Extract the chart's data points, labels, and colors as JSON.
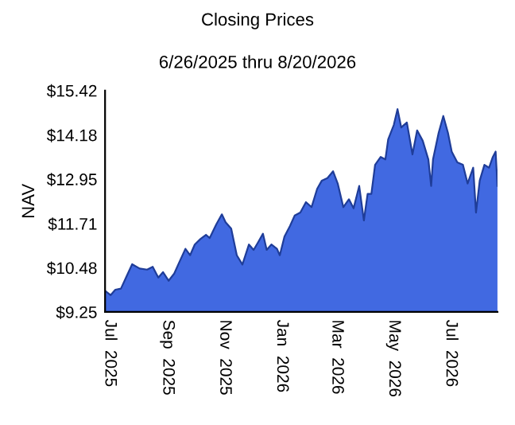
{
  "chart_data": {
    "type": "area",
    "title": "Closing Prices",
    "subtitle": "6/26/2025 thru 8/20/2026",
    "ylabel": "NAV",
    "x": [
      "2025-06-26",
      "2025-07-02",
      "2025-07-07",
      "2025-07-13",
      "2025-07-19",
      "2025-07-25",
      "2025-08-02",
      "2025-08-10",
      "2025-08-16",
      "2025-08-22",
      "2025-08-27",
      "2025-09-02",
      "2025-09-08",
      "2025-09-13",
      "2025-09-20",
      "2025-09-25",
      "2025-09-30",
      "2025-10-06",
      "2025-10-12",
      "2025-10-16",
      "2025-10-23",
      "2025-10-29",
      "2025-11-02",
      "2025-11-08",
      "2025-11-14",
      "2025-11-20",
      "2025-11-27",
      "2025-12-02",
      "2025-12-07",
      "2025-12-12",
      "2025-12-16",
      "2025-12-21",
      "2025-12-27",
      "2025-12-30",
      "2026-01-04",
      "2026-01-10",
      "2026-01-15",
      "2026-01-21",
      "2026-01-27",
      "2026-02-02",
      "2026-02-08",
      "2026-02-13",
      "2026-02-19",
      "2026-02-25",
      "2026-03-02",
      "2026-03-08",
      "2026-03-14",
      "2026-03-19",
      "2026-03-25",
      "2026-03-30",
      "2026-04-03",
      "2026-04-07",
      "2026-04-11",
      "2026-04-17",
      "2026-04-22",
      "2026-04-25",
      "2026-05-01",
      "2026-05-05",
      "2026-05-09",
      "2026-05-15",
      "2026-05-21",
      "2026-05-26",
      "2026-06-01",
      "2026-06-07",
      "2026-06-10",
      "2026-06-12",
      "2026-06-18",
      "2026-06-23",
      "2026-06-28",
      "2026-07-02",
      "2026-07-08",
      "2026-07-14",
      "2026-07-19",
      "2026-07-25",
      "2026-07-28",
      "2026-08-01",
      "2026-08-06",
      "2026-08-11",
      "2026-08-15",
      "2026-08-18",
      "2026-08-20"
    ],
    "series": [
      {
        "color": "#4169e1",
        "values": [
          9.84,
          9.72,
          9.87,
          9.9,
          10.24,
          10.58,
          10.46,
          10.43,
          10.51,
          10.21,
          10.36,
          10.12,
          10.32,
          10.61,
          11.01,
          10.83,
          11.13,
          11.28,
          11.4,
          11.31,
          11.69,
          11.97,
          11.75,
          11.57,
          10.83,
          10.57,
          11.13,
          10.98,
          11.2,
          11.43,
          10.98,
          11.13,
          11.01,
          10.83,
          11.35,
          11.65,
          11.94,
          12.02,
          12.31,
          12.17,
          12.68,
          12.91,
          12.98,
          13.17,
          12.83,
          12.17,
          12.39,
          12.14,
          12.76,
          11.8,
          12.54,
          12.54,
          13.35,
          13.57,
          13.5,
          14.06,
          14.46,
          14.9,
          14.39,
          14.53,
          13.64,
          14.31,
          14.02,
          13.5,
          12.76,
          13.5,
          14.24,
          14.71,
          14.24,
          13.72,
          13.42,
          13.35,
          12.83,
          13.27,
          12.02,
          12.91,
          13.35,
          13.27,
          13.57,
          13.72,
          12.76
        ]
      }
    ],
    "xlim": [
      "2025-06-26",
      "2026-08-20"
    ],
    "xticks": [
      {
        "value": "2025-07-01",
        "label": "Jul  2025"
      },
      {
        "value": "2025-09-01",
        "label": "Sep  2025"
      },
      {
        "value": "2025-11-01",
        "label": "Nov  2025"
      },
      {
        "value": "2026-01-01",
        "label": "Jan  2026"
      },
      {
        "value": "2026-03-01",
        "label": "Mar  2026"
      },
      {
        "value": "2026-05-01",
        "label": "May  2026"
      },
      {
        "value": "2026-07-01",
        "label": "Jul  2026"
      }
    ],
    "ylim": [
      9.25,
      15.42
    ],
    "yticks": [
      {
        "value": 9.25,
        "label": "$9.25"
      },
      {
        "value": 10.48,
        "label": "$10.48"
      },
      {
        "value": 11.71,
        "label": "$11.71"
      },
      {
        "value": 12.95,
        "label": "$12.95"
      },
      {
        "value": 14.18,
        "label": "$14.18"
      },
      {
        "value": 15.42,
        "label": "$15.42"
      }
    ],
    "grid": false,
    "legend": false
  }
}
